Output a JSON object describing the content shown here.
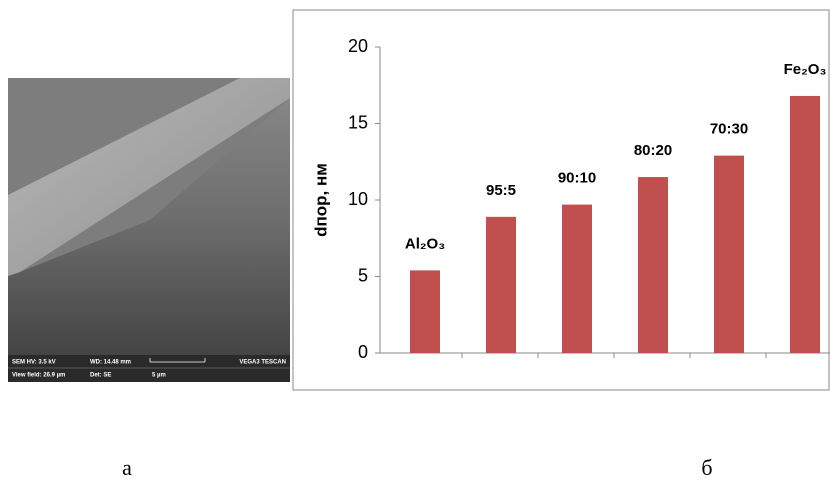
{
  "chart_data": {
    "type": "bar",
    "ylabel": "dпор, нм",
    "categories": [
      "Al₂O₃",
      "95:5",
      "90:10",
      "80:20",
      "70:30",
      "Fe₂O₃"
    ],
    "values": [
      5.4,
      8.9,
      9.7,
      11.5,
      12.9,
      16.8
    ],
    "color": "#c0504d",
    "ylim": [
      0,
      20
    ],
    "yticks": [
      0,
      5,
      10,
      15,
      20
    ]
  },
  "sem_info": {
    "hv": "SEM HV: 3.5 kV",
    "wd": "WD: 14.48 mm",
    "brand": "VEGA3 TESCAN",
    "view_field": "View field: 26.9 µm",
    "det": "Det: SE",
    "scale": "5 µm"
  },
  "panel_labels": [
    "а",
    "б"
  ]
}
